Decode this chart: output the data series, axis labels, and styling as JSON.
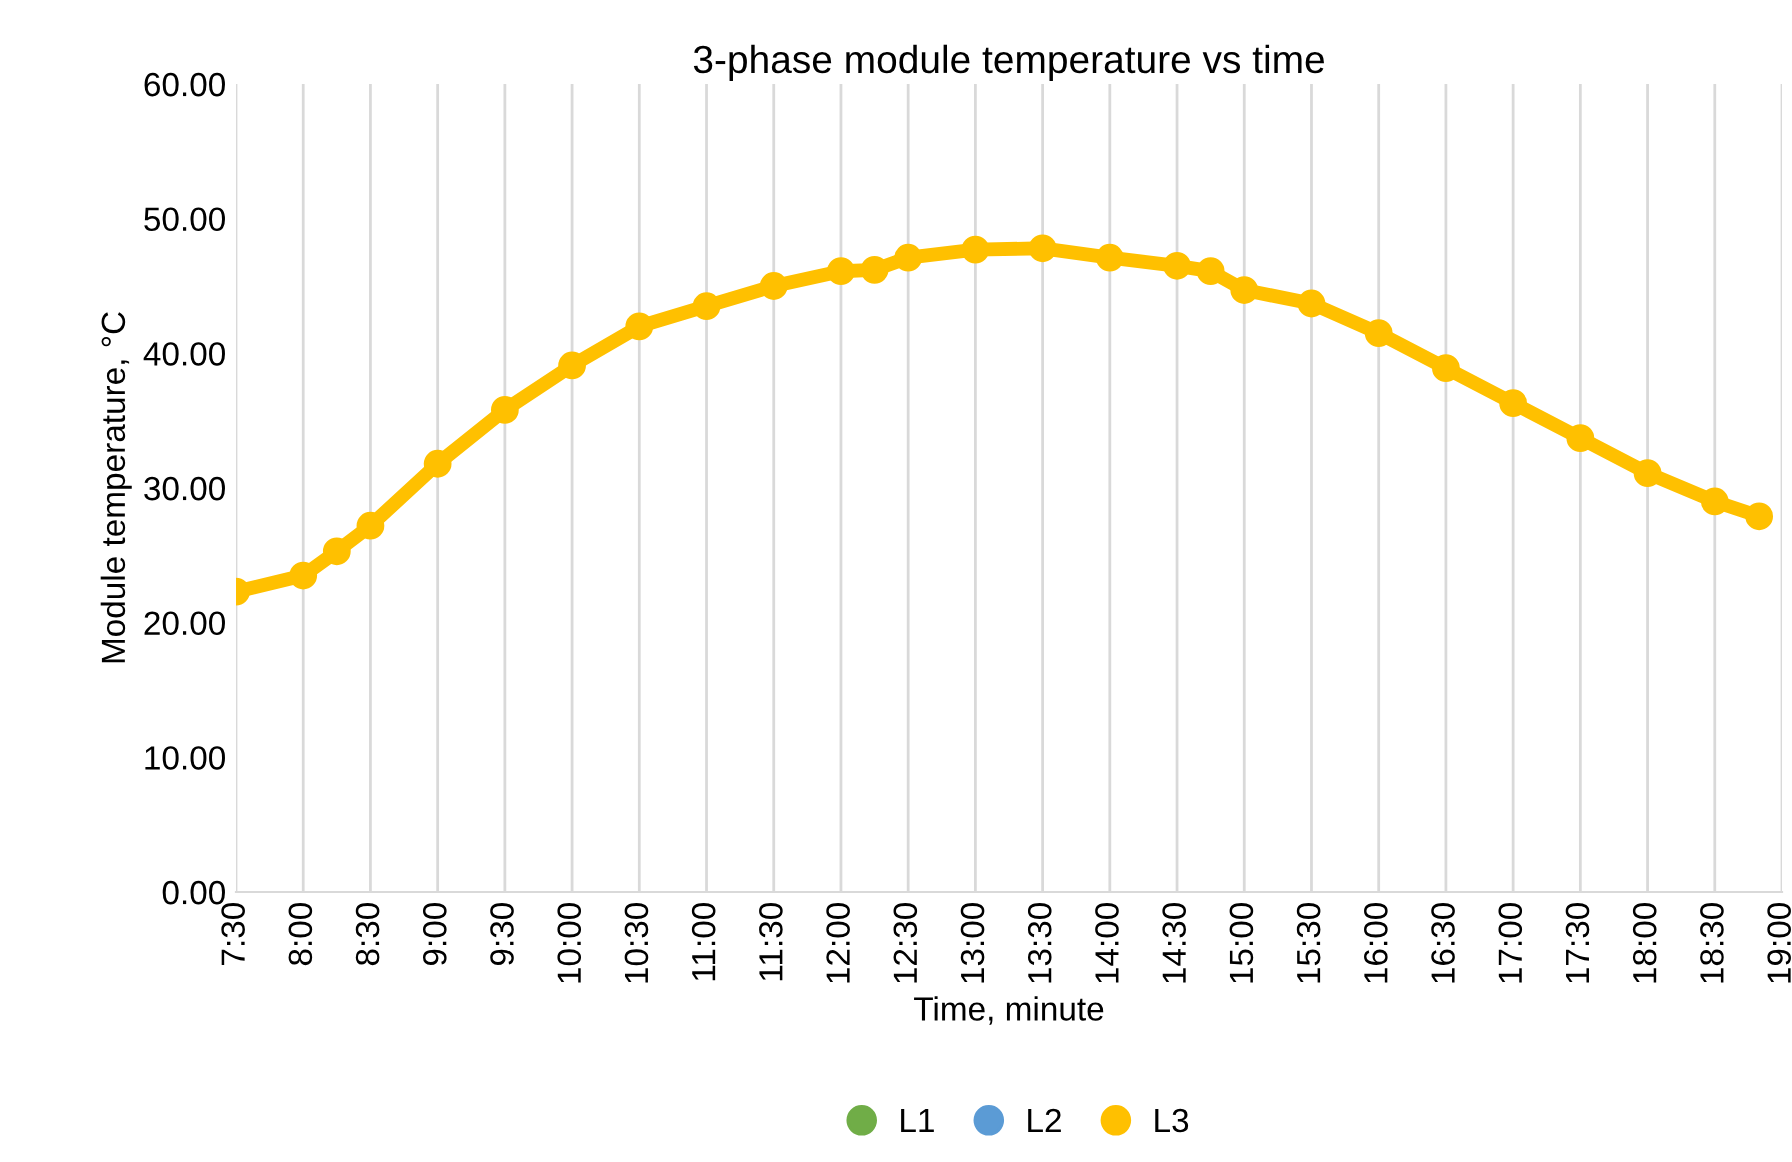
{
  "chart_data": {
    "type": "line",
    "title": "3-phase module temperature vs time",
    "xlabel": "Time, minute",
    "ylabel": "Module temperature, °C",
    "x": [
      7.5,
      8.0,
      8.25,
      8.5,
      9.0,
      9.5,
      10.0,
      10.5,
      11.0,
      11.5,
      12.0,
      12.25,
      12.5,
      13.0,
      13.5,
      14.0,
      14.5,
      14.75,
      15.0,
      15.5,
      16.0,
      16.5,
      17.0,
      17.5,
      18.0,
      18.5,
      18.83
    ],
    "series": [
      {
        "name": "L1",
        "color": "#70ad47",
        "values": [
          null,
          null,
          null,
          null,
          null,
          null,
          null,
          null,
          null,
          null,
          null,
          null,
          null,
          null,
          null,
          null,
          null,
          null,
          null,
          null,
          null,
          null,
          null,
          null,
          null,
          null,
          null
        ]
      },
      {
        "name": "L2",
        "color": "#5b9bd5",
        "values": [
          null,
          null,
          null,
          null,
          null,
          null,
          null,
          null,
          null,
          null,
          null,
          null,
          null,
          null,
          null,
          null,
          null,
          null,
          null,
          null,
          null,
          null,
          null,
          null,
          null,
          null,
          null
        ]
      },
      {
        "name": "L3",
        "color": "#ffc000",
        "values": [
          22.3,
          23.5,
          25.3,
          27.2,
          31.8,
          35.8,
          39.1,
          42.0,
          43.5,
          45.0,
          46.1,
          46.2,
          47.1,
          47.7,
          47.8,
          47.1,
          46.5,
          46.1,
          44.7,
          43.7,
          41.5,
          38.9,
          36.3,
          33.7,
          31.1,
          29.0,
          27.9
        ]
      }
    ],
    "xlim": [
      7.5,
      19.0
    ],
    "xticks": [
      {
        "value": 7.5,
        "label": "7:30"
      },
      {
        "value": 8.0,
        "label": "8:00"
      },
      {
        "value": 8.5,
        "label": "8:30"
      },
      {
        "value": 9.0,
        "label": "9:00"
      },
      {
        "value": 9.5,
        "label": "9:30"
      },
      {
        "value": 10.0,
        "label": "10:00"
      },
      {
        "value": 10.5,
        "label": "10:30"
      },
      {
        "value": 11.0,
        "label": "11:00"
      },
      {
        "value": 11.5,
        "label": "11:30"
      },
      {
        "value": 12.0,
        "label": "12:00"
      },
      {
        "value": 12.5,
        "label": "12:30"
      },
      {
        "value": 13.0,
        "label": "13:00"
      },
      {
        "value": 13.5,
        "label": "13:30"
      },
      {
        "value": 14.0,
        "label": "14:00"
      },
      {
        "value": 14.5,
        "label": "14:30"
      },
      {
        "value": 15.0,
        "label": "15:00"
      },
      {
        "value": 15.5,
        "label": "15:30"
      },
      {
        "value": 16.0,
        "label": "16:00"
      },
      {
        "value": 16.5,
        "label": "16:30"
      },
      {
        "value": 17.0,
        "label": "17:00"
      },
      {
        "value": 17.5,
        "label": "17:30"
      },
      {
        "value": 18.0,
        "label": "18:00"
      },
      {
        "value": 18.5,
        "label": "18:30"
      },
      {
        "value": 19.0,
        "label": "19:00"
      }
    ],
    "ylim": [
      0,
      60
    ],
    "yticks": [
      {
        "value": 0,
        "label": "0.00"
      },
      {
        "value": 10,
        "label": "10.00"
      },
      {
        "value": 20,
        "label": "20.00"
      },
      {
        "value": 30,
        "label": "30.00"
      },
      {
        "value": 40,
        "label": "40.00"
      },
      {
        "value": 50,
        "label": "50.00"
      },
      {
        "value": 60,
        "label": "60.00"
      }
    ],
    "grid": "x",
    "legend": "bottom",
    "marker": "circle",
    "line_style": "solid"
  }
}
